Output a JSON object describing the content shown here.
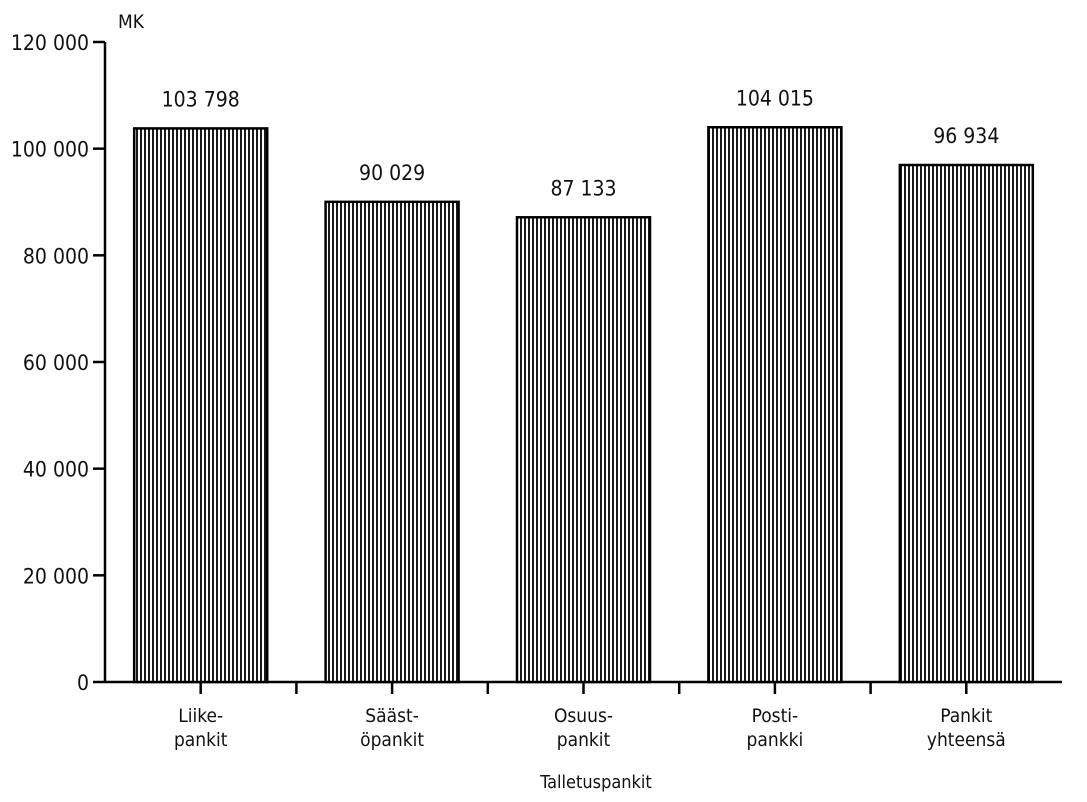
{
  "chart_data": {
    "type": "bar",
    "ylabel": "MK",
    "ylim": [
      0,
      120000
    ],
    "yticks": [
      0,
      20000,
      40000,
      60000,
      80000,
      100000,
      120000
    ],
    "ytick_labels": [
      "0",
      "20 000",
      "40 000",
      "60 000",
      "80 000",
      "100 000",
      "120 000"
    ],
    "categories": [
      [
        "Liike-",
        "pankit"
      ],
      [
        "Sääst-",
        "öpankit"
      ],
      [
        "Osuus-",
        "pankit"
      ],
      [
        "Posti-",
        "pankki"
      ],
      [
        "Pankit",
        "yhteensä"
      ]
    ],
    "values": [
      103798,
      90029,
      87133,
      104015,
      96934
    ],
    "value_labels": [
      "103 798",
      "90 029",
      "87 133",
      "104 015",
      "96 934"
    ],
    "group_label": "Talletuspankit",
    "grid": false,
    "legend": "none"
  }
}
